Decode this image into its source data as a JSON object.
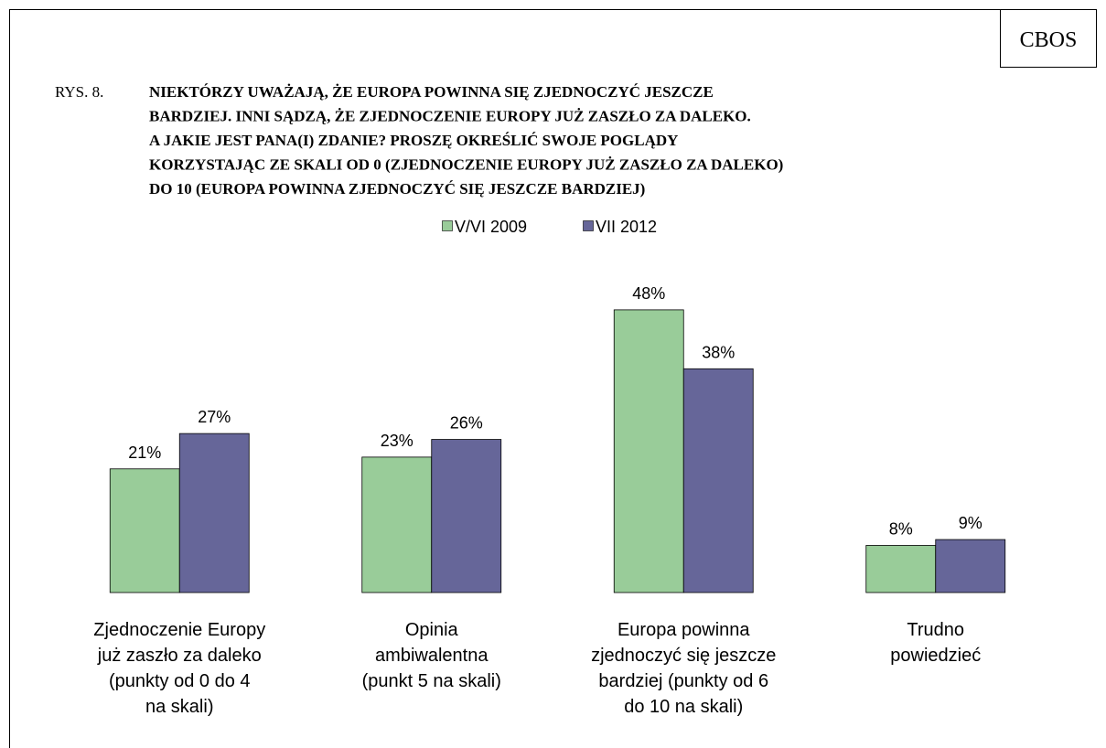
{
  "chart_data": {
    "type": "bar",
    "source": "CBOS",
    "figure_label": "RYS. 8.",
    "title": "NIEKTÓRZY UWAŻAJĄ, ŻE EUROPA POWINNA SIĘ ZJEDNOCZYĆ JESZCZE\nBARDZIEJ. INNI SĄDZĄ, ŻE ZJEDNOCZENIE EUROPY JUŻ ZASZŁO ZA DALEKO.\nA JAKIE JEST PANA(I) ZDANIE? PROSZĘ OKREŚLIĆ SWOJE POGLĄDY\nKORZYSTAJĄC ZE SKALI OD 0 (ZJEDNOCZENIE EUROPY JUŻ ZASZŁO ZA DALEKO)\nDO 10  (EUROPA POWINNA ZJEDNOCZYĆ SIĘ JESZCZE BARDZIEJ)",
    "categories": [
      "Zjednoczenie Europy\njuż zaszło za daleko\n(punkty od 0 do 4\nna skali)",
      "Opinia\nambiwalentna\n(punkt 5 na skali)",
      "Europa powinna\nzjednoczyć się jeszcze\nbardziej (punkty od 6\ndo 10 na skali)",
      "Trudno\npowiedzieć"
    ],
    "series": [
      {
        "name": "V/VI 2009",
        "color": "#99cc99",
        "values": [
          21,
          23,
          48,
          8
        ],
        "value_labels": [
          "21%",
          "23%",
          "48%",
          "8%"
        ]
      },
      {
        "name": "VII 2012",
        "color": "#666699",
        "values": [
          27,
          26,
          38,
          9
        ],
        "value_labels": [
          "27%",
          "26%",
          "38%",
          "9%"
        ]
      }
    ],
    "ylim": [
      0,
      50
    ],
    "legend": "top"
  }
}
